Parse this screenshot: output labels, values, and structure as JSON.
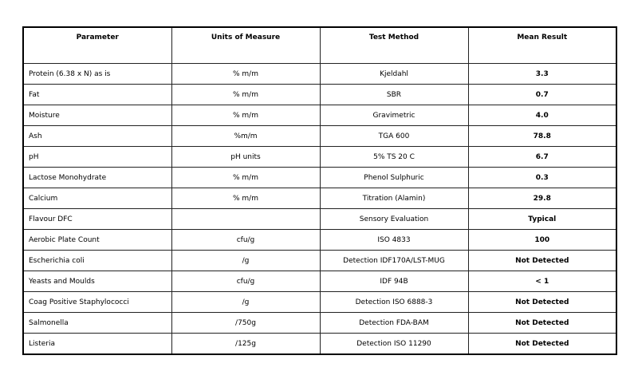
{
  "headers": [
    "Parameter",
    "Units of Measure",
    "Test Method",
    "Mean Result"
  ],
  "rows": [
    {
      "parameter": "Protein (6.38 x N) as is",
      "units": "% m/m",
      "method": "Kjeldahl",
      "result": "3.3"
    },
    {
      "parameter": "Fat",
      "units": "% m/m",
      "method": "SBR",
      "result": "0.7"
    },
    {
      "parameter": "Moisture",
      "units": "% m/m",
      "method": "Gravimetric",
      "result": "4.0"
    },
    {
      "parameter": "Ash",
      "units": "%m/m",
      "method": "TGA 600",
      "result": "78.8"
    },
    {
      "parameter": "pH",
      "units": "pH units",
      "method": "5% TS 20 C",
      "result": "6.7"
    },
    {
      "parameter": "Lactose Monohydrate",
      "units": "% m/m",
      "method": "Phenol Sulphuric",
      "result": "0.3"
    },
    {
      "parameter": "Calcium",
      "units": "% m/m",
      "method": "Titration (Alamin)",
      "result": "29.8"
    },
    {
      "parameter": "Flavour DFC",
      "units": "",
      "method": "Sensory Evaluation",
      "result": "Typical"
    },
    {
      "parameter": "Aerobic Plate Count",
      "units": "cfu/g",
      "method": "ISO 4833",
      "result": "100"
    },
    {
      "parameter": "Escherichia coli",
      "units": "/g",
      "method": "Detection IDF170A/LST-MUG",
      "result": "Not Detected"
    },
    {
      "parameter": "Yeasts and Moulds",
      "units": "cfu/g",
      "method": "IDF 94B",
      "result": "< 1"
    },
    {
      "parameter": "Coag Positive Staphylococci",
      "units": "/g",
      "method": "Detection ISO 6888-3",
      "result": "Not Detected"
    },
    {
      "parameter": "Salmonella",
      "units": "/750g",
      "method": "Detection FDA-BAM",
      "result": "Not Detected"
    },
    {
      "parameter": "Listeria",
      "units": "/125g",
      "method": "Detection ISO 11290",
      "result": "Not Detected"
    }
  ]
}
